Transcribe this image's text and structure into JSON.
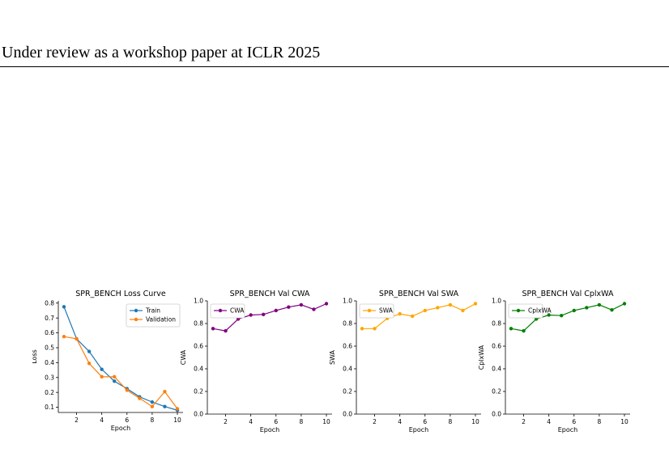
{
  "header": {
    "text": "Under review as a workshop paper at ICLR 2025"
  },
  "colors": {
    "train": "#1f77b4",
    "validation": "#ff7f0e",
    "cwa": "#800080",
    "swa": "#ffa500",
    "cplxwa": "#008000",
    "axis": "#000000"
  },
  "chart_data": [
    {
      "type": "line",
      "title": "SPR_BENCH Loss Curve",
      "xlabel": "Epoch",
      "ylabel": "Loss",
      "x": [
        1,
        2,
        3,
        4,
        5,
        6,
        7,
        8,
        9,
        10
      ],
      "xticks": [
        "2",
        "4",
        "6",
        "8",
        "10"
      ],
      "yticks": [
        "0.1",
        "0.2",
        "0.3",
        "0.4",
        "0.5",
        "0.6",
        "0.7",
        "0.8"
      ],
      "xlim": [
        0.55,
        10.45
      ],
      "ylim": [
        0.065,
        0.815
      ],
      "legend": "top-right",
      "grid": false,
      "series": [
        {
          "name": "Train",
          "color": "#1f77b4",
          "values": [
            0.775,
            0.56,
            0.475,
            0.355,
            0.275,
            0.225,
            0.17,
            0.135,
            0.105,
            0.08
          ]
        },
        {
          "name": "Validation",
          "color": "#ff7f0e",
          "values": [
            0.575,
            0.56,
            0.395,
            0.305,
            0.305,
            0.215,
            0.16,
            0.105,
            0.205,
            0.09
          ]
        }
      ]
    },
    {
      "type": "line",
      "title": "SPR_BENCH Val CWA",
      "xlabel": "Epoch",
      "ylabel": "CWA",
      "x": [
        1,
        2,
        3,
        4,
        5,
        6,
        7,
        8,
        9,
        10
      ],
      "xticks": [
        "2",
        "4",
        "6",
        "8",
        "10"
      ],
      "yticks": [
        "0.0",
        "0.2",
        "0.4",
        "0.6",
        "0.8",
        "1.0"
      ],
      "xlim": [
        0.55,
        10.45
      ],
      "ylim": [
        0,
        1
      ],
      "legend": "top-left",
      "grid": false,
      "series": [
        {
          "name": "CWA",
          "color": "#800080",
          "values": [
            0.755,
            0.735,
            0.84,
            0.875,
            0.88,
            0.915,
            0.945,
            0.965,
            0.925,
            0.975
          ]
        }
      ]
    },
    {
      "type": "line",
      "title": "SPR_BENCH Val SWA",
      "xlabel": "Epoch",
      "ylabel": "SWA",
      "x": [
        1,
        2,
        3,
        4,
        5,
        6,
        7,
        8,
        9,
        10
      ],
      "xticks": [
        "2",
        "4",
        "6",
        "8",
        "10"
      ],
      "yticks": [
        "0.0",
        "0.2",
        "0.4",
        "0.6",
        "0.8",
        "1.0"
      ],
      "xlim": [
        0.55,
        10.45
      ],
      "ylim": [
        0,
        1
      ],
      "legend": "top-left",
      "grid": false,
      "series": [
        {
          "name": "SWA",
          "color": "#ffa500",
          "values": [
            0.755,
            0.755,
            0.845,
            0.885,
            0.865,
            0.915,
            0.94,
            0.965,
            0.915,
            0.975
          ]
        }
      ]
    },
    {
      "type": "line",
      "title": "SPR_BENCH Val CplxWA",
      "xlabel": "Epoch",
      "ylabel": "CplxWA",
      "x": [
        1,
        2,
        3,
        4,
        5,
        6,
        7,
        8,
        9,
        10
      ],
      "xticks": [
        "2",
        "4",
        "6",
        "8",
        "10"
      ],
      "yticks": [
        "0.0",
        "0.2",
        "0.4",
        "0.6",
        "0.8",
        "1.0"
      ],
      "xlim": [
        0.55,
        10.45
      ],
      "ylim": [
        0,
        1
      ],
      "legend": "top-left",
      "grid": false,
      "series": [
        {
          "name": "CplxWA",
          "color": "#008000",
          "values": [
            0.755,
            0.735,
            0.84,
            0.875,
            0.87,
            0.915,
            0.94,
            0.965,
            0.92,
            0.975
          ]
        }
      ]
    }
  ]
}
